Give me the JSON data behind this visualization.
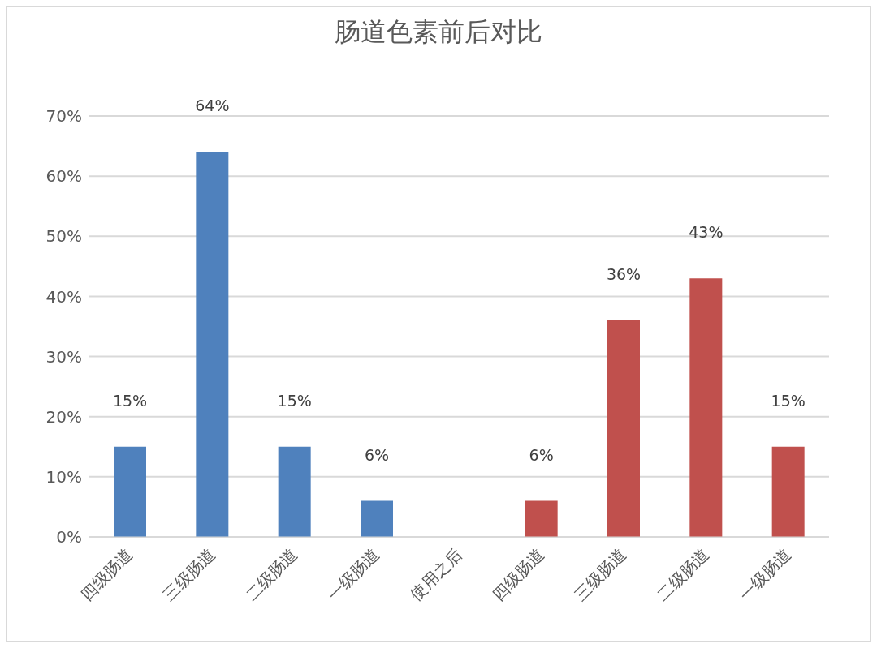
{
  "chart_data": {
    "type": "bar",
    "title": "肠道色素前后对比",
    "categories": [
      "四级肠道",
      "三级肠道",
      "二级肠道",
      "一级肠道",
      "使用之后",
      "四级肠道",
      "三级肠道",
      "二级肠道",
      "一级肠道"
    ],
    "values": [
      15,
      64,
      15,
      6,
      null,
      6,
      36,
      43,
      15
    ],
    "colors": [
      "#4f81bd",
      "#4f81bd",
      "#4f81bd",
      "#4f81bd",
      null,
      "#c0504d",
      "#c0504d",
      "#c0504d",
      "#c0504d"
    ],
    "value_labels": [
      "15%",
      "64%",
      "15%",
      "6%",
      null,
      "6%",
      "36%",
      "43%",
      "15%"
    ],
    "ylim": [
      0,
      70
    ],
    "yticks": [
      {
        "value": 0,
        "label": "0%"
      },
      {
        "value": 10,
        "label": "10%"
      },
      {
        "value": 20,
        "label": "20%"
      },
      {
        "value": 30,
        "label": "30%"
      },
      {
        "value": 40,
        "label": "40%"
      },
      {
        "value": 50,
        "label": "50%"
      },
      {
        "value": 60,
        "label": "60%"
      },
      {
        "value": 70,
        "label": "70%"
      }
    ],
    "grid": "y"
  }
}
